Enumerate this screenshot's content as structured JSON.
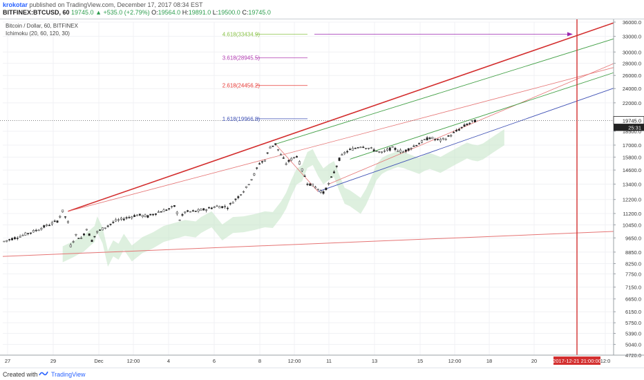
{
  "header": {
    "author": "krokotar",
    "published": "published on TradingView.com, December 17, 2017 08:34 EST",
    "symbol": "BITFINEX:BTCUSD, 60",
    "last": "19745.0",
    "change_arrow": "▲",
    "change": "+535.0 (+2.79%)",
    "o_label": "O:",
    "o_value": "19564.0",
    "h_label": "H:",
    "h_value": "19891.0",
    "l_label": "L:",
    "l_value": "19500.0",
    "c_label": "C:",
    "c_value": "19745.0"
  },
  "legend": {
    "title": "Bitcoin / Dollar, 60, BITFINEX",
    "indicator": "Ichimoku (20, 60, 120, 30)"
  },
  "footer": {
    "created": "Created with",
    "brand": "TradingView",
    "logo_icon": "tradingview-logo-icon"
  },
  "chart_data": {
    "type": "candlestick",
    "title": "Bitcoin / Dollar, 60, BITFINEX",
    "ylim": [
      4720,
      36000
    ],
    "y_scale": "log",
    "y_ticks": [
      36000,
      33000,
      30000,
      28000,
      26000,
      24000,
      22000,
      18500,
      17000,
      15800,
      14600,
      13400,
      12200,
      11200,
      10450,
      9650,
      8850,
      8250,
      7750,
      7150,
      6650,
      6150,
      5750,
      5390,
      5040,
      4720
    ],
    "x_ticks": [
      "27",
      "29",
      "Dec",
      "12:00",
      "4",
      "6",
      "8",
      "12:00",
      "11",
      "13",
      "15",
      "12:00",
      "18",
      "20",
      "12:0"
    ],
    "last_price": "19745.0",
    "countdown": "25:31",
    "vline_label": "2017-12-21 21:00:00",
    "fib_levels": [
      {
        "label": "4.618(33434.9)",
        "value": 33434.9,
        "color": "#8bc34a"
      },
      {
        "label": "3.618(28945.5)",
        "value": 28945.5,
        "color": "#b03ab0"
      },
      {
        "label": "2.618(24456.2)",
        "value": 24456.2,
        "color": "#e53935"
      },
      {
        "label": "1.618(19966.8)",
        "value": 19966.8,
        "color": "#3f51b5"
      }
    ],
    "price_path": [
      [
        0,
        9450
      ],
      [
        6,
        9750
      ],
      [
        12,
        10100
      ],
      [
        16,
        10400
      ],
      [
        20,
        10700
      ],
      [
        22,
        11350
      ],
      [
        24,
        10600
      ],
      [
        25,
        9200
      ],
      [
        27,
        9800
      ],
      [
        29,
        9600
      ],
      [
        31,
        10200
      ],
      [
        33,
        9500
      ],
      [
        35,
        10000
      ],
      [
        38,
        10300
      ],
      [
        42,
        10700
      ],
      [
        46,
        10900
      ],
      [
        50,
        11100
      ],
      [
        54,
        11000
      ],
      [
        58,
        11300
      ],
      [
        62,
        11500
      ],
      [
        64,
        11700
      ],
      [
        66,
        10800
      ],
      [
        68,
        11300
      ],
      [
        72,
        11350
      ],
      [
        76,
        11500
      ],
      [
        80,
        11700
      ],
      [
        84,
        11650
      ],
      [
        88,
        12400
      ],
      [
        91,
        13100
      ],
      [
        94,
        14200
      ],
      [
        96,
        15200
      ],
      [
        98,
        15500
      ],
      [
        100,
        16800
      ],
      [
        102,
        17100
      ],
      [
        104,
        16000
      ],
      [
        106,
        15200
      ],
      [
        108,
        15600
      ],
      [
        110,
        15900
      ],
      [
        112,
        14600
      ],
      [
        114,
        13500
      ],
      [
        116,
        13300
      ],
      [
        118,
        13000
      ],
      [
        120,
        12700
      ],
      [
        122,
        13400
      ],
      [
        124,
        14400
      ],
      [
        126,
        15600
      ],
      [
        128,
        16200
      ],
      [
        130,
        16500
      ],
      [
        132,
        16700
      ],
      [
        134,
        16900
      ],
      [
        136,
        16800
      ],
      [
        138,
        16600
      ],
      [
        140,
        16400
      ],
      [
        142,
        16200
      ],
      [
        144,
        16500
      ],
      [
        146,
        16700
      ],
      [
        148,
        16500
      ],
      [
        150,
        16300
      ],
      [
        152,
        16600
      ],
      [
        154,
        16900
      ],
      [
        156,
        17200
      ],
      [
        158,
        17500
      ],
      [
        160,
        17800
      ],
      [
        162,
        17600
      ],
      [
        164,
        17500
      ],
      [
        166,
        17700
      ],
      [
        168,
        18100
      ],
      [
        170,
        18500
      ],
      [
        172,
        18900
      ],
      [
        174,
        19300
      ],
      [
        176,
        19600
      ],
      [
        178,
        19745
      ]
    ]
  }
}
